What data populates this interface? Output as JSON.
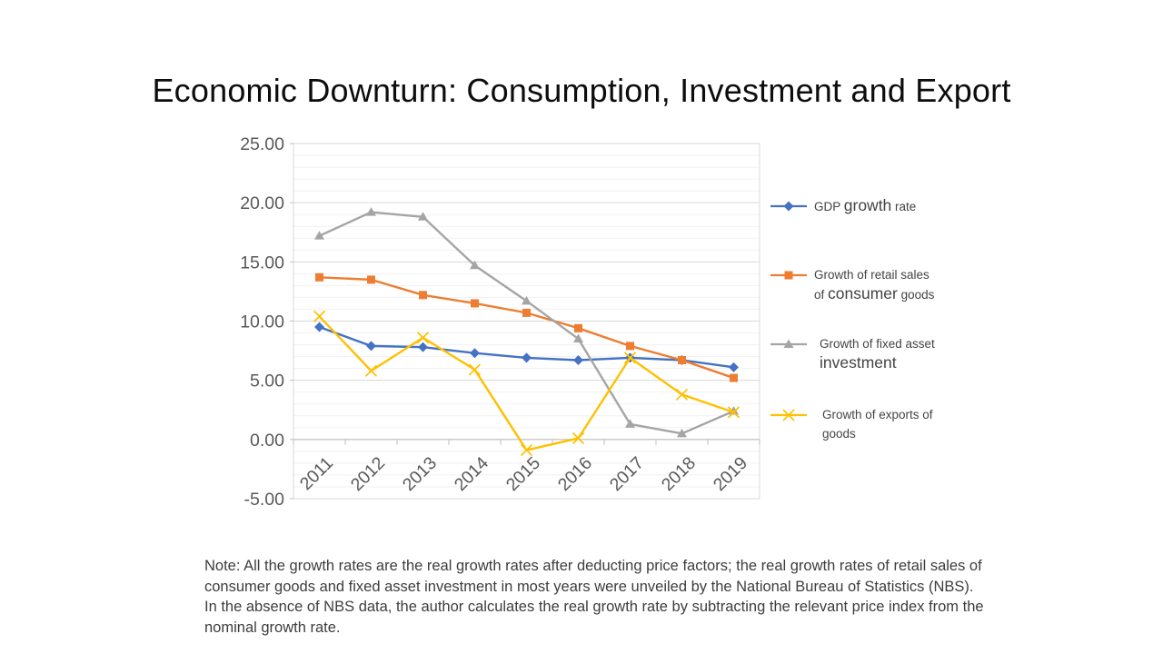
{
  "slide": {
    "title": "Economic Downturn: Consumption, Investment and Export",
    "note": "Note: All the growth rates are the real growth rates after deducting price factors; the real growth rates of retail sales of consumer goods and fixed asset investment in most years were unveiled by the National Bureau of Statistics (NBS). In the absence of NBS data, the author calculates the real growth rate by subtracting the relevant price index from the nominal growth rate."
  },
  "chart_data": {
    "type": "line",
    "title": "Economic Downturn: Consumption, Investment and Export",
    "categories": [
      "2011",
      "2012",
      "2013",
      "2014",
      "2015",
      "2016",
      "2017",
      "2018",
      "2019"
    ],
    "series": [
      {
        "name": "GDP growth rate",
        "color": "#4472C4",
        "marker": "diamond",
        "values": [
          9.5,
          7.9,
          7.8,
          7.3,
          6.9,
          6.7,
          6.9,
          6.7,
          6.1
        ]
      },
      {
        "name": "Growth of retail sales of consumer goods",
        "color": "#ED7D31",
        "marker": "square",
        "values": [
          13.7,
          13.5,
          12.2,
          11.5,
          10.7,
          9.4,
          7.9,
          6.7,
          5.2
        ]
      },
      {
        "name": "Growth of fixed asset investment",
        "color": "#A5A5A5",
        "marker": "triangle",
        "values": [
          17.2,
          19.2,
          18.8,
          14.7,
          11.7,
          8.5,
          1.3,
          0.5,
          2.4
        ]
      },
      {
        "name": "Growth of exports of goods",
        "color": "#FFC000",
        "marker": "x",
        "values": [
          10.4,
          5.8,
          8.6,
          5.9,
          -0.9,
          0.1,
          6.9,
          3.8,
          2.3
        ]
      }
    ],
    "xlabel": "",
    "ylabel": "",
    "ylim": [
      -5,
      25
    ],
    "y_major_unit": 5,
    "y_minor_unit": 1,
    "y_tick_labels": [
      "25.00",
      "20.00",
      "15.00",
      "10.00",
      "5.00",
      "0.00",
      "-5.00"
    ],
    "x_label_rotation": -45,
    "grid": true,
    "legend_position": "right",
    "axis_label_color": "#595959",
    "axis_line_color": "#BFBFBF",
    "gridline_color_major": "#D9D9D9",
    "gridline_color_minor": "#F1F1F1"
  },
  "legend": {
    "items": [
      {
        "series": "GDP growth rate",
        "marker": "diamond",
        "color": "#4472C4",
        "lines": [
          [
            [
              "GDP ",
              "sm"
            ],
            [
              "growth",
              "lg"
            ],
            [
              " rate",
              "sm"
            ]
          ]
        ]
      },
      {
        "series": "Growth of retail sales of consumer goods",
        "marker": "square",
        "color": "#ED7D31",
        "lines": [
          [
            [
              "Growth of retail sales",
              "sm"
            ]
          ],
          [
            [
              "of ",
              "sm"
            ],
            [
              "consumer",
              "lg"
            ],
            [
              " goods",
              "sm"
            ]
          ]
        ]
      },
      {
        "series": "Growth of fixed asset investment",
        "marker": "triangle",
        "color": "#A5A5A5",
        "lines": [
          [
            [
              "Growth of fixed asset",
              "sm"
            ]
          ],
          [
            [
              "investment",
              "lg"
            ]
          ]
        ]
      },
      {
        "series": "Growth of exports of goods",
        "marker": "x",
        "color": "#FFC000",
        "lines": [
          [
            [
              "Growth of exports of",
              "sm"
            ]
          ],
          [
            [
              "goods",
              "sm"
            ]
          ]
        ]
      }
    ]
  }
}
